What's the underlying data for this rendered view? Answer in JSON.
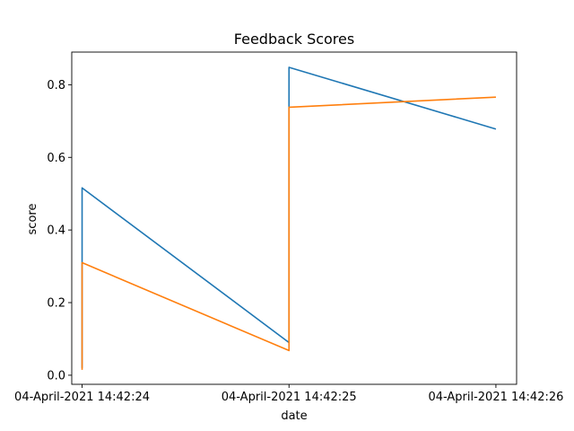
{
  "chart_data": {
    "type": "line",
    "title": "Feedback Scores",
    "xlabel": "date",
    "ylabel": "score",
    "x_ticks": [
      "04-April-2021 14:42:24",
      "04-April-2021 14:42:25",
      "04-April-2021 14:42:26"
    ],
    "y_ticks": [
      "0.0",
      "0.2",
      "0.4",
      "0.6",
      "0.8"
    ],
    "y_tick_values": [
      0.0,
      0.2,
      0.4,
      0.6,
      0.8
    ],
    "xlim": [
      -0.05,
      2.1
    ],
    "ylim": [
      -0.025,
      0.89
    ],
    "grid": false,
    "legend": "none",
    "series": [
      {
        "color": "#1f77b4",
        "x": [
          0.0,
          0.0,
          1.0,
          1.0,
          2.0
        ],
        "y": [
          0.02,
          0.516,
          0.09,
          0.848,
          0.678
        ]
      },
      {
        "color": "#ff7f0e",
        "x": [
          0.0,
          0.0,
          1.0,
          1.0,
          2.0
        ],
        "y": [
          0.015,
          0.31,
          0.068,
          0.738,
          0.766
        ]
      }
    ]
  }
}
